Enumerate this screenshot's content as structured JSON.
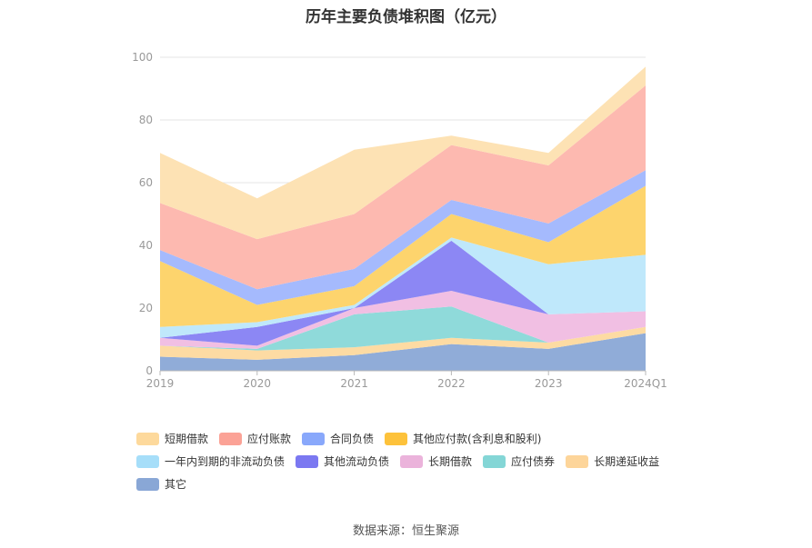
{
  "chart_data": {
    "type": "area",
    "stacked": true,
    "title": "历年主要负债堆积图（亿元）",
    "categories": [
      "2019",
      "2020",
      "2021",
      "2022",
      "2023",
      "2024Q1"
    ],
    "ylim": [
      0,
      100
    ],
    "yticks": [
      0,
      20,
      40,
      60,
      80,
      100
    ],
    "grid": true,
    "legend_position": "bottom",
    "series": [
      {
        "name": "其它",
        "color": "#90acd8",
        "values": [
          4.5,
          3.5,
          5.0,
          8.5,
          7.0,
          12.0
        ]
      },
      {
        "name": "长期递延收益",
        "color": "#fddba3",
        "values": [
          3.5,
          3.0,
          2.5,
          2.0,
          2.0,
          2.0
        ]
      },
      {
        "name": "应付债券",
        "color": "#8fdada",
        "values": [
          0.0,
          0.5,
          10.5,
          10.0,
          0.0,
          0.0
        ]
      },
      {
        "name": "长期借款",
        "color": "#f1bfe3",
        "values": [
          2.5,
          1.0,
          2.0,
          5.0,
          9.0,
          5.0
        ]
      },
      {
        "name": "其他流动负债",
        "color": "#8c87f4",
        "values": [
          0.0,
          6.0,
          0.0,
          16.0,
          0.0,
          0.0
        ]
      },
      {
        "name": "一年内到期的非流动负债",
        "color": "#bfe8fb",
        "values": [
          3.5,
          1.5,
          1.0,
          1.0,
          16.0,
          18.0
        ]
      },
      {
        "name": "其他应付款(含利息和股利)",
        "color": "#fdd46d",
        "values": [
          21.0,
          5.5,
          6.0,
          7.5,
          7.0,
          22.0
        ]
      },
      {
        "name": "合同负债",
        "color": "#a5bafd",
        "values": [
          3.5,
          5.0,
          5.5,
          4.5,
          6.0,
          5.0
        ]
      },
      {
        "name": "应付账款",
        "color": "#fdb9b0",
        "values": [
          15.0,
          16.0,
          17.5,
          17.5,
          18.5,
          27.0
        ]
      },
      {
        "name": "短期借款",
        "color": "#fde2b4",
        "values": [
          16.0,
          13.0,
          20.5,
          3.0,
          4.0,
          6.0
        ]
      }
    ]
  },
  "legend_rows": [
    [
      {
        "name": "短期借款",
        "color": "#fdd99c"
      },
      {
        "name": "应付账款",
        "color": "#fba296"
      },
      {
        "name": "合同负债",
        "color": "#89a8fb"
      },
      {
        "name": "其他应付款(含利息和股利)",
        "color": "#fdc23b"
      }
    ],
    [
      {
        "name": "一年内到期的非流动负债",
        "color": "#a6def9"
      },
      {
        "name": "其他流动负债",
        "color": "#7b78f1"
      },
      {
        "name": "长期借款",
        "color": "#ebb3db"
      },
      {
        "name": "应付债券",
        "color": "#84d6d6"
      },
      {
        "name": "长期递延收益",
        "color": "#fdd59a"
      }
    ],
    [
      {
        "name": "其它",
        "color": "#89a7d6"
      }
    ]
  ],
  "source": "数据来源：恒生聚源"
}
